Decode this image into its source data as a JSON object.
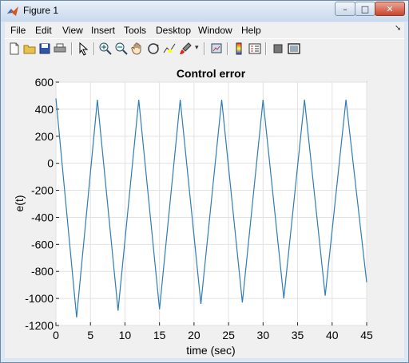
{
  "window": {
    "title": "Figure 1",
    "minimize_glyph": "–",
    "maximize_glyph": "□",
    "close_glyph": "✕"
  },
  "menu": {
    "items": [
      "File",
      "Edit",
      "View",
      "Insert",
      "Tools",
      "Desktop",
      "Window",
      "Help"
    ]
  },
  "toolbar": {
    "icons": [
      "new-file-icon",
      "open-folder-icon",
      "save-icon",
      "print-icon",
      "pointer-icon",
      "zoom-in-icon",
      "zoom-out-icon",
      "pan-hand-icon",
      "rotate-3d-icon",
      "data-cursor-icon",
      "brush-icon",
      "link-plot-icon",
      "colorbar-icon",
      "legend-icon",
      "hide-tools-icon",
      "dock-icon"
    ]
  },
  "colors": {
    "line": "#2e7db5",
    "axes_bg": "#ffffff",
    "figure_bg": "#f0f0f0"
  },
  "chart_data": {
    "type": "line",
    "title": "Control error",
    "xlabel": "time (sec)",
    "ylabel": "e(t)",
    "xlim": [
      0,
      45
    ],
    "ylim": [
      -1200,
      600
    ],
    "xticks": [
      0,
      5,
      10,
      15,
      20,
      25,
      30,
      35,
      40,
      45
    ],
    "yticks": [
      600,
      400,
      200,
      0,
      -200,
      -400,
      -600,
      -800,
      -1000,
      -1200
    ],
    "grid": true,
    "series": [
      {
        "x": [
          0,
          3,
          6,
          9,
          12,
          15,
          18,
          21,
          24,
          27,
          30,
          33,
          36,
          39,
          42,
          45
        ],
        "y": [
          480,
          -1140,
          470,
          -1090,
          470,
          -1080,
          470,
          -1040,
          470,
          -1030,
          470,
          -1000,
          470,
          -980,
          470,
          -880
        ]
      }
    ]
  }
}
